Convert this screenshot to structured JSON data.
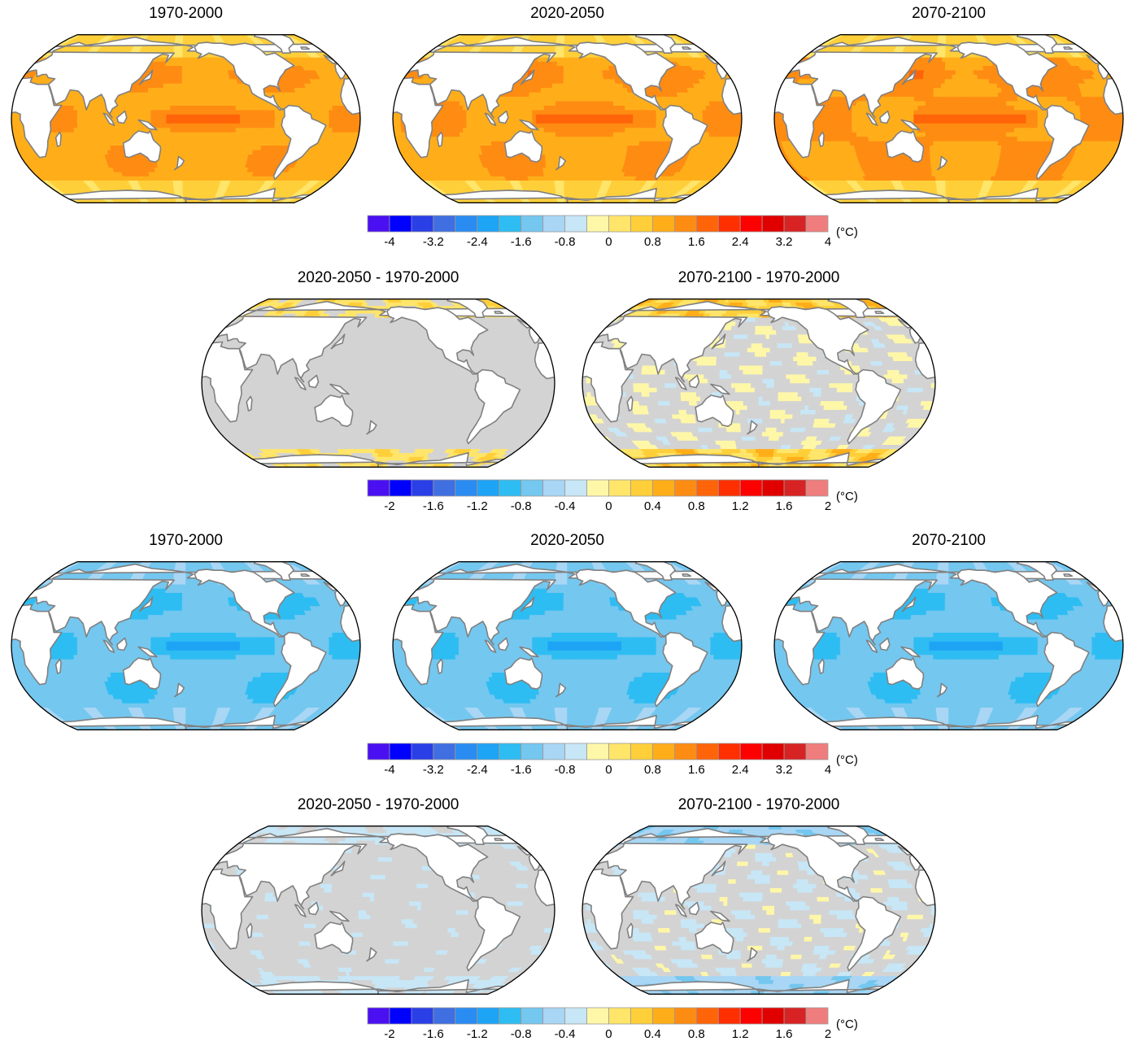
{
  "colors": {
    "land": "#ffffff",
    "coast": "#808080",
    "neutral_diff": "#d3d3d3",
    "scale": [
      "#4b10f2",
      "#0000ff",
      "#2b3fe7",
      "#3f6fe1",
      "#2a8cf2",
      "#1ea4f5",
      "#2ebdf2",
      "#74c7ef",
      "#a8d6f4",
      "#c7e6f6",
      "#fff7a8",
      "#ffe56a",
      "#ffcf3a",
      "#ffae1a",
      "#ff8c12",
      "#ff6408",
      "#ff2f00",
      "#ff0000",
      "#e00000",
      "#d72323",
      "#f07d7d"
    ]
  },
  "colorbars": [
    {
      "id": "cb1",
      "ticks": [
        "-4",
        "-3.2",
        "-2.4",
        "-1.6",
        "-0.8",
        "0",
        "0.8",
        "1.6",
        "2.4",
        "3.2",
        "4"
      ],
      "unit": "(°C)"
    },
    {
      "id": "cb2",
      "ticks": [
        "-2",
        "-1.6",
        "-1.2",
        "-0.8",
        "-0.4",
        "0",
        "0.4",
        "0.8",
        "1.2",
        "1.6",
        "2"
      ],
      "unit": "(°C)"
    },
    {
      "id": "cb3",
      "ticks": [
        "-4",
        "-3.2",
        "-2.4",
        "-1.6",
        "-0.8",
        "0",
        "0.8",
        "1.6",
        "2.4",
        "3.2",
        "4"
      ],
      "unit": "(°C)"
    },
    {
      "id": "cb4",
      "ticks": [
        "-2",
        "-1.6",
        "-1.2",
        "-0.8",
        "-0.4",
        "0",
        "0.4",
        "0.8",
        "1.2",
        "1.6",
        "2"
      ],
      "unit": "(°C)"
    }
  ],
  "panels": [
    {
      "id": "p1",
      "title": "1970-2000",
      "field": "warm",
      "intensity": 1.0
    },
    {
      "id": "p2",
      "title": "2020-2050",
      "field": "warm",
      "intensity": 1.05
    },
    {
      "id": "p3",
      "title": "2070-2100",
      "field": "warm",
      "intensity": 1.1
    },
    {
      "id": "p4",
      "title": "2020-2050 - 1970-2000",
      "field": "diff-warm-small",
      "intensity": 0.6
    },
    {
      "id": "p5",
      "title": "2070-2100 - 1970-2000",
      "field": "diff-warm-large",
      "intensity": 1.0
    },
    {
      "id": "p6",
      "title": "1970-2000",
      "field": "cold",
      "intensity": 1.0
    },
    {
      "id": "p7",
      "title": "2020-2050",
      "field": "cold",
      "intensity": 1.0
    },
    {
      "id": "p8",
      "title": "2070-2100",
      "field": "cold",
      "intensity": 1.0
    },
    {
      "id": "p9",
      "title": "2020-2050 - 1970-2000",
      "field": "diff-cold-small",
      "intensity": 0.6
    },
    {
      "id": "p10",
      "title": "2070-2100 - 1970-2000",
      "field": "diff-cold-large",
      "intensity": 1.0
    }
  ]
}
